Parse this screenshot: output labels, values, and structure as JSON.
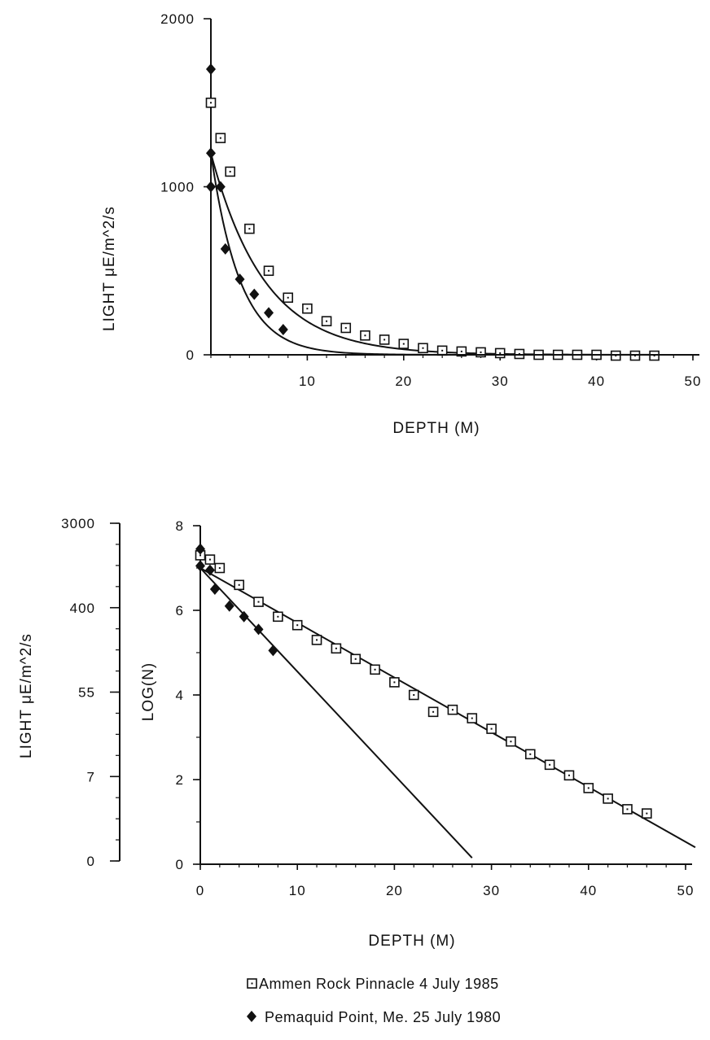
{
  "chart_data": [
    {
      "type": "scatter",
      "title": "",
      "xlabel": "DEPTH (M)",
      "ylabel": "LIGHT  μE/m^2/s",
      "xlim": [
        0,
        50
      ],
      "ylim": [
        0,
        2000
      ],
      "x_ticks": [
        "10",
        "20",
        "30",
        "40",
        "50"
      ],
      "y_ticks": [
        "0",
        "1000",
        "2000"
      ],
      "grid": false,
      "series": [
        {
          "name": "Ammen Rock Pinnacle 4 July 1985",
          "marker": "open-square",
          "points": [
            [
              0,
              1500
            ],
            [
              1,
              1290
            ],
            [
              2,
              1090
            ],
            [
              4,
              750
            ],
            [
              6,
              500
            ],
            [
              8,
              340
            ],
            [
              10,
              275
            ],
            [
              12,
              200
            ],
            [
              14,
              160
            ],
            [
              16,
              115
            ],
            [
              18,
              90
            ],
            [
              20,
              65
            ],
            [
              22,
              40
            ],
            [
              24,
              25
            ],
            [
              26,
              20
            ],
            [
              28,
              15
            ],
            [
              30,
              10
            ],
            [
              32,
              5
            ],
            [
              34,
              0
            ],
            [
              36,
              0
            ],
            [
              38,
              0
            ],
            [
              40,
              0
            ],
            [
              42,
              -5
            ],
            [
              44,
              -5
            ],
            [
              46,
              -5
            ]
          ],
          "fit_curve": "exponential",
          "fit": {
            "i0": 1200,
            "k": 0.18
          }
        },
        {
          "name": "Pemaquid Point, Me. 25 July 1980",
          "marker": "filled-diamond",
          "points": [
            [
              0,
              1700
            ],
            [
              0,
              1200
            ],
            [
              0,
              1000
            ],
            [
              1,
              1000
            ],
            [
              1.5,
              630
            ],
            [
              3,
              450
            ],
            [
              4.5,
              360
            ],
            [
              6,
              250
            ],
            [
              7.5,
              150
            ]
          ],
          "fit_curve": "exponential",
          "fit": {
            "i0": 1200,
            "k": 0.33
          }
        }
      ]
    },
    {
      "type": "scatter",
      "title": "",
      "xlabel": "DEPTH (M)",
      "ylabel": "LOG(N)",
      "secondary_ylabel": "LIGHT  μE/m^2/s",
      "secondary_y_ticks": [
        "0",
        "7",
        "55",
        "400",
        "3000"
      ],
      "xlim": [
        0,
        50
      ],
      "ylim": [
        0,
        8
      ],
      "x_ticks": [
        "0",
        "10",
        "20",
        "30",
        "40",
        "50"
      ],
      "y_ticks": [
        "0",
        "2",
        "4",
        "6",
        "8"
      ],
      "grid": false,
      "series": [
        {
          "name": "Ammen Rock Pinnacle 4 July 1985",
          "marker": "open-square",
          "points": [
            [
              0,
              7.3
            ],
            [
              1,
              7.2
            ],
            [
              2,
              7.0
            ],
            [
              4,
              6.6
            ],
            [
              6,
              6.2
            ],
            [
              8,
              5.85
            ],
            [
              10,
              5.65
            ],
            [
              12,
              5.3
            ],
            [
              14,
              5.1
            ],
            [
              16,
              4.85
            ],
            [
              18,
              4.6
            ],
            [
              20,
              4.3
            ],
            [
              22,
              4.0
            ],
            [
              24,
              3.6
            ],
            [
              26,
              3.65
            ],
            [
              28,
              3.45
            ],
            [
              30,
              3.2
            ],
            [
              32,
              2.9
            ],
            [
              34,
              2.6
            ],
            [
              36,
              2.35
            ],
            [
              38,
              2.1
            ],
            [
              40,
              1.8
            ],
            [
              42,
              1.55
            ],
            [
              44,
              1.3
            ],
            [
              46,
              1.2
            ]
          ],
          "fit_line": [
            [
              0,
              7.0
            ],
            [
              51,
              0.4
            ]
          ]
        },
        {
          "name": "Pemaquid Point, Me. 25 July 1980",
          "marker": "filled-diamond",
          "points": [
            [
              0,
              7.45
            ],
            [
              0,
              7.05
            ],
            [
              1,
              6.95
            ],
            [
              1.5,
              6.5
            ],
            [
              3,
              6.1
            ],
            [
              4.5,
              5.85
            ],
            [
              6,
              5.55
            ],
            [
              7.5,
              5.05
            ]
          ],
          "fit_line": [
            [
              0,
              7.0
            ],
            [
              28,
              0.15
            ]
          ]
        }
      ]
    }
  ],
  "legend": [
    {
      "marker": "open-square",
      "label": "Ammen Rock Pinnacle 4 July 1985"
    },
    {
      "marker": "filled-diamond",
      "label": "Pemaquid Point, Me. 25 July 1980"
    }
  ]
}
